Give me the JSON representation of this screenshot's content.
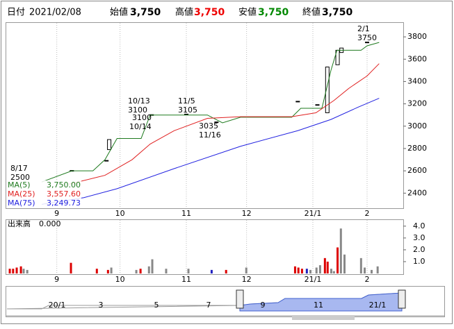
{
  "header": {
    "date_label": "日付",
    "date": "2021/02/08",
    "open_label": "始値",
    "open": "3,750",
    "high_label": "高値",
    "high": "3,750",
    "low_label": "安値",
    "low": "3,750",
    "close_label": "終値",
    "close": "3,750"
  },
  "chart_data": [
    {
      "type": "line",
      "xlim": [
        0,
        132
      ],
      "ylim": [
        2265,
        3925
      ],
      "yticks": [
        2400,
        2600,
        2800,
        3000,
        3200,
        3400,
        3600,
        3800
      ],
      "xticks": [
        {
          "value": 17,
          "label": "9"
        },
        {
          "value": 38,
          "label": "10"
        },
        {
          "value": 60,
          "label": "11"
        },
        {
          "value": 80,
          "label": "12"
        },
        {
          "value": 102,
          "label": "21/1"
        },
        {
          "value": 120,
          "label": "2"
        }
      ],
      "grid": "x",
      "series": [
        {
          "name": "MA(5)",
          "color": "#1e7a1e",
          "value_labels": "3,750.00",
          "last": 3750.0,
          "x": [
            12,
            22,
            29,
            33,
            37,
            45,
            48,
            67,
            72,
            78,
            95,
            98,
            105,
            108,
            110,
            118,
            120,
            124
          ],
          "values": [
            2500,
            2600,
            2600,
            2700,
            2890,
            2890,
            3100,
            3100,
            3030,
            3080,
            3080,
            3160,
            3160,
            3500,
            3680,
            3680,
            3720,
            3750
          ]
        },
        {
          "name": "MA(25)",
          "color": "#e02020",
          "value_labels": "3,557.60",
          "last": 3557.6,
          "x": [
            21,
            33,
            42,
            48,
            56,
            67,
            78,
            95,
            103,
            109,
            114,
            120,
            124
          ],
          "values": [
            2480,
            2560,
            2700,
            2840,
            2960,
            3070,
            3085,
            3085,
            3120,
            3230,
            3340,
            3450,
            3560
          ]
        },
        {
          "name": "MA(75)",
          "color": "#2020e0",
          "value_labels": "3,249.73",
          "last": 3249.73,
          "x": [
            12,
            26,
            37,
            56,
            78,
            97,
            108,
            117,
            124
          ],
          "values": [
            2300,
            2360,
            2440,
            2620,
            2820,
            2960,
            3060,
            3170,
            3250
          ]
        }
      ],
      "candles": {
        "x": [
          22,
          33.5,
          34.4,
          48.5,
          60,
          70,
          97,
          103.5,
          106.8,
          110.2,
          111.5,
          120
        ],
        "open": [
          2600,
          2690,
          2790,
          3100,
          3105,
          3035,
          3220,
          3190,
          3120,
          3550,
          3660,
          3750
        ],
        "close": [
          2600,
          2690,
          2880,
          3100,
          3105,
          3035,
          3220,
          3190,
          3530,
          3680,
          3700,
          3750
        ]
      },
      "annotations": [
        {
          "lines": [
            "8/17",
            "2500"
          ]
        },
        {
          "lines": [
            "10/13",
            "3100"
          ]
        },
        {
          "lines": [
            "3100",
            "10/14"
          ]
        },
        {
          "lines": [
            "11/5",
            "3105"
          ]
        },
        {
          "lines": [
            "3035",
            "11/16"
          ]
        },
        {
          "lines": [
            "2/1",
            "3750"
          ]
        }
      ]
    },
    {
      "type": "bar",
      "title": "出来高",
      "title_value": "0.000",
      "xlim": [
        0,
        132
      ],
      "ylim": [
        0,
        4.4
      ],
      "yticks": [
        {
          "value": 1,
          "label": "1.0"
        },
        {
          "value": 2,
          "label": "2.0"
        },
        {
          "value": 3,
          "label": "3.0"
        },
        {
          "value": 4,
          "label": "4.0"
        }
      ],
      "xticks": [
        {
          "value": 17,
          "label": "9"
        },
        {
          "value": 38,
          "label": "10"
        },
        {
          "value": 60,
          "label": "11"
        },
        {
          "value": 80,
          "label": "12"
        },
        {
          "value": 102,
          "label": "21/1"
        },
        {
          "value": 120,
          "label": "2"
        }
      ],
      "x": [
        1.4,
        2.5,
        3.7,
        5.1,
        6,
        7.2,
        21.7,
        30.3,
        34,
        35.1,
        43.4,
        44.8,
        47.6,
        48.7,
        53.3,
        60.7,
        68.4,
        73.2,
        79.9,
        96.1,
        97.2,
        98.4,
        100,
        101.2,
        103.2,
        104.4,
        106,
        106.9,
        108.1,
        109,
        110.2,
        111.3,
        112.5,
        118,
        119.2,
        121.5,
        123.5
      ],
      "values": [
        0.4,
        0.4,
        0.5,
        0.6,
        0.4,
        0.3,
        0.9,
        0.4,
        0.3,
        0.5,
        0.3,
        0.4,
        0.6,
        1.2,
        0.4,
        0.4,
        0.3,
        0.3,
        0.5,
        0.6,
        0.5,
        0.4,
        0.4,
        0.3,
        0.5,
        0.7,
        1.3,
        1.0,
        0.4,
        0.2,
        2.2,
        3.8,
        1.6,
        1.3,
        0.5,
        0.3,
        0.6
      ],
      "colors": [
        "#d00",
        "#d00",
        "#d00",
        "#d00",
        "#888",
        "#888",
        "#d00",
        "#d00",
        "#d00",
        "#888",
        "#888",
        "#d00",
        "#888",
        "#888",
        "#888",
        "#888",
        "#2020c0",
        "#d00",
        "#888",
        "#d00",
        "#d00",
        "#d00",
        "#2020c0",
        "#888",
        "#888",
        "#888",
        "#d00",
        "#d00",
        "#888",
        "#888",
        "#d00",
        "#888",
        "#888",
        "#888",
        "#888",
        "#888",
        "#888"
      ]
    }
  ],
  "navigator": {
    "labels": [
      "20/1",
      "3",
      "5",
      "7",
      "9",
      "11",
      "21/1"
    ]
  }
}
